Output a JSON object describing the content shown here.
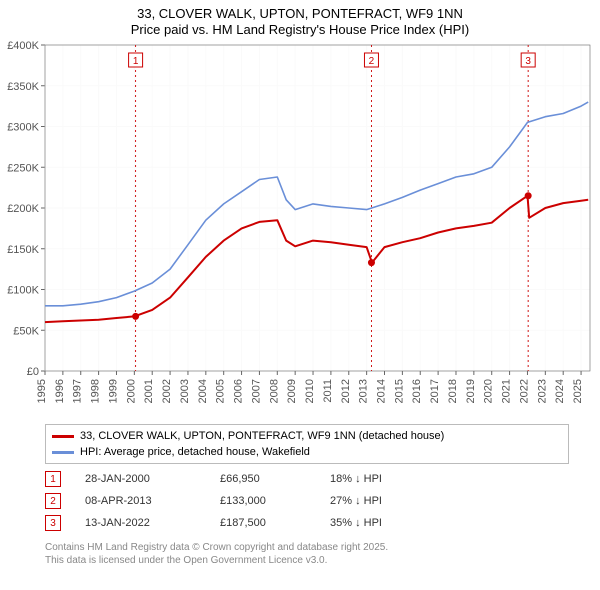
{
  "title_line1": "33, CLOVER WALK, UPTON, PONTEFRACT, WF9 1NN",
  "title_line2": "Price paid vs. HM Land Registry's House Price Index (HPI)",
  "chart": {
    "type": "line",
    "plot_bg": "#ffffff",
    "grid_color": "#fafafa",
    "axis_color": "#666666",
    "x_years": [
      1995,
      1996,
      1997,
      1998,
      1999,
      2000,
      2001,
      2002,
      2003,
      2004,
      2005,
      2006,
      2007,
      2008,
      2009,
      2010,
      2011,
      2012,
      2013,
      2014,
      2015,
      2016,
      2017,
      2018,
      2019,
      2020,
      2021,
      2022,
      2023,
      2024,
      2025
    ],
    "y_ticks": [
      0,
      50000,
      100000,
      150000,
      200000,
      250000,
      300000,
      350000,
      400000
    ],
    "y_tick_labels": [
      "£0",
      "£50K",
      "£100K",
      "£150K",
      "£200K",
      "£250K",
      "£300K",
      "£350K",
      "£400K"
    ],
    "xlim": [
      1995,
      2025.5
    ],
    "ylim": [
      0,
      400000
    ],
    "label_fontsize": 11,
    "series": [
      {
        "name": "price_paid",
        "color": "#cc0000",
        "width": 2.0,
        "x": [
          1995,
          1996,
          1997,
          1998,
          1999,
          2000,
          2001,
          2002,
          2003,
          2004,
          2005,
          2006,
          2007,
          2008,
          2008.5,
          2009,
          2010,
          2011,
          2012,
          2013,
          2013.3,
          2014,
          2015,
          2016,
          2017,
          2018,
          2019,
          2020,
          2021,
          2022,
          2022.1,
          2023,
          2024,
          2025,
          2025.4
        ],
        "y": [
          60000,
          61000,
          62000,
          63000,
          65000,
          67000,
          75000,
          90000,
          115000,
          140000,
          160000,
          175000,
          183000,
          185000,
          160000,
          153000,
          160000,
          158000,
          155000,
          152000,
          133000,
          152000,
          158000,
          163000,
          170000,
          175000,
          178000,
          182000,
          200000,
          215000,
          188000,
          200000,
          206000,
          209000,
          210000
        ]
      },
      {
        "name": "hpi",
        "color": "#6a8fd8",
        "width": 1.6,
        "x": [
          1995,
          1996,
          1997,
          1998,
          1999,
          2000,
          2001,
          2002,
          2003,
          2004,
          2005,
          2006,
          2007,
          2008,
          2008.5,
          2009,
          2010,
          2011,
          2012,
          2013,
          2014,
          2015,
          2016,
          2017,
          2018,
          2019,
          2020,
          2021,
          2022,
          2023,
          2024,
          2025,
          2025.4
        ],
        "y": [
          80000,
          80000,
          82000,
          85000,
          90000,
          98000,
          108000,
          125000,
          155000,
          185000,
          205000,
          220000,
          235000,
          238000,
          210000,
          198000,
          205000,
          202000,
          200000,
          198000,
          205000,
          213000,
          222000,
          230000,
          238000,
          242000,
          250000,
          275000,
          305000,
          312000,
          316000,
          325000,
          330000
        ]
      }
    ],
    "sale_markers": [
      {
        "n": "1",
        "x_year": 2000.07,
        "color": "#cc0000"
      },
      {
        "n": "2",
        "x_year": 2013.27,
        "color": "#cc0000"
      },
      {
        "n": "3",
        "x_year": 2022.04,
        "color": "#cc0000"
      }
    ]
  },
  "legend": {
    "items": [
      {
        "color": "#cc0000",
        "label": "33, CLOVER WALK, UPTON, PONTEFRACT, WF9 1NN (detached house)"
      },
      {
        "color": "#6a8fd8",
        "label": "HPI: Average price, detached house, Wakefield"
      }
    ]
  },
  "sales": [
    {
      "n": "1",
      "date": "28-JAN-2000",
      "price": "£66,950",
      "delta": "18% ↓ HPI",
      "color": "#cc0000"
    },
    {
      "n": "2",
      "date": "08-APR-2013",
      "price": "£133,000",
      "delta": "27% ↓ HPI",
      "color": "#cc0000"
    },
    {
      "n": "3",
      "date": "13-JAN-2022",
      "price": "£187,500",
      "delta": "35% ↓ HPI",
      "color": "#cc0000"
    }
  ],
  "footer_line1": "Contains HM Land Registry data © Crown copyright and database right 2025.",
  "footer_line2": "This data is licensed under the Open Government Licence v3.0."
}
